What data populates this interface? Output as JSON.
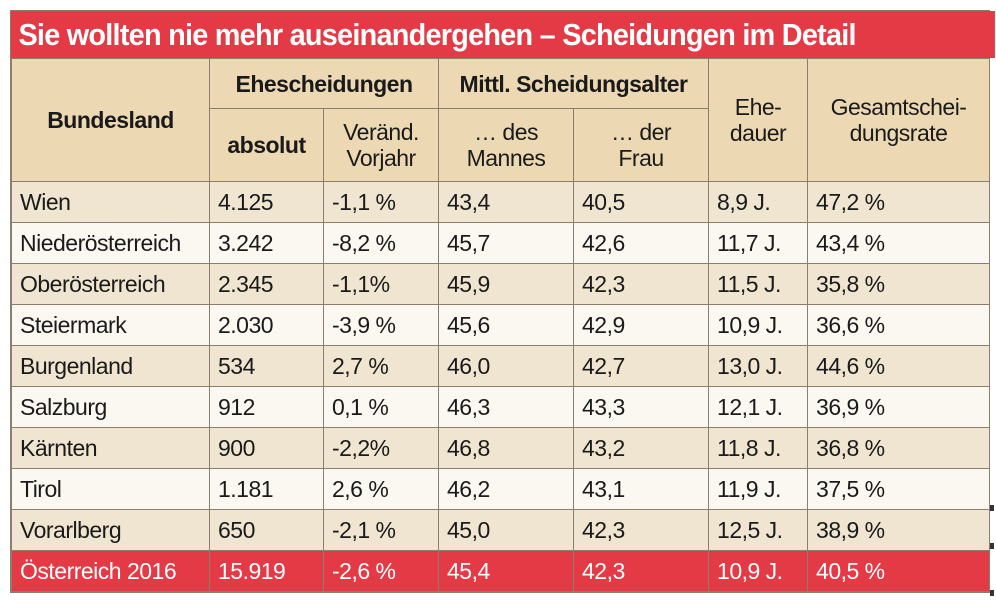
{
  "title": "Sie wollten nie mehr auseinandergehen – Scheidungen im Detail",
  "headers": {
    "bundesland": "Bundesland",
    "ehescheidungen": "Ehescheidungen",
    "absolut": "absolut",
    "veraend": "Veränd. Vorjahr",
    "scheidungsalter": "Mittl. Scheidungsalter",
    "mann": "… des Mannes",
    "frau": "… der Frau",
    "ehedauer": "Ehe-dauer",
    "rate": "Gesamtschei-dungsrate"
  },
  "rows": [
    [
      "Wien",
      "4.125",
      "-1,1 %",
      "43,4",
      "40,5",
      "8,9 J.",
      "47,2 %"
    ],
    [
      "Niederösterreich",
      "3.242",
      "-8,2 %",
      "45,7",
      "42,6",
      "11,7 J.",
      "43,4 %"
    ],
    [
      "Oberösterreich",
      "2.345",
      "-1,1%",
      "45,9",
      "42,3",
      "11,5 J.",
      "35,8 %"
    ],
    [
      "Steiermark",
      "2.030",
      "-3,9 %",
      "45,6",
      "42,9",
      "10,9 J.",
      "36,6 %"
    ],
    [
      "Burgenland",
      "534",
      "2,7 %",
      "46,0",
      "42,7",
      "13,0 J.",
      "44,6 %"
    ],
    [
      "Salzburg",
      "912",
      "0,1 %",
      "46,3",
      "43,3",
      "12,1 J.",
      "36,9 %"
    ],
    [
      "Kärnten",
      "900",
      "-2,2%",
      "46,8",
      "43,2",
      "11,8 J.",
      "36,8 %"
    ],
    [
      "Tirol",
      "1.181",
      "2,6 %",
      "46,2",
      "43,1",
      "11,9 J.",
      "37,5 %"
    ],
    [
      "Vorarlberg",
      "650",
      "-2,1 %",
      "45,0",
      "42,3",
      "12,5 J.",
      "38,9 %"
    ]
  ],
  "total": [
    "Österreich 2016",
    "15.919",
    "-2,6 %",
    "45,4",
    "42,3",
    "10,9 J.",
    "40,5 %"
  ],
  "colors": {
    "accent_red": "#e43a45",
    "header_tan": "#ecd9b3",
    "row_beige": "#efe5d1",
    "row_light": "#fbf8f2"
  }
}
